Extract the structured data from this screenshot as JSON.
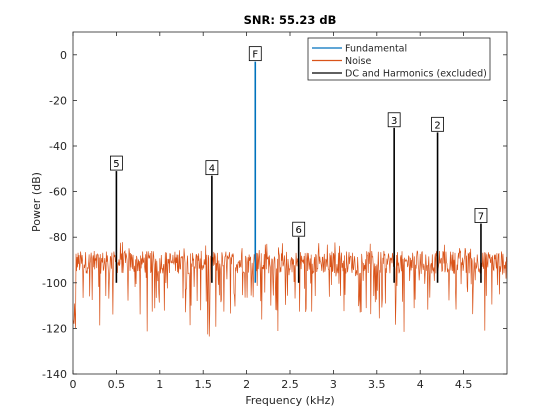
{
  "chart_data": {
    "type": "line",
    "title": "SNR:  55.23 dB",
    "xlabel": "Frequency (kHz)",
    "ylabel": "Power (dB)",
    "xlim": [
      0,
      5
    ],
    "ylim": [
      -140,
      10
    ],
    "xticks": [
      0,
      0.5,
      1,
      1.5,
      2,
      2.5,
      3,
      3.5,
      4,
      4.5
    ],
    "xtick_labels": [
      "0",
      "0.5",
      "1",
      "1.5",
      "2",
      "2.5",
      "3",
      "3.5",
      "4",
      "4.5"
    ],
    "yticks": [
      -140,
      -120,
      -100,
      -80,
      -60,
      -40,
      -20,
      0
    ],
    "ytick_labels": [
      "-140",
      "-120",
      "-100",
      "-80",
      "-60",
      "-40",
      "-20",
      "0"
    ],
    "grid": false,
    "legend_position": "top-right",
    "series": [
      {
        "name": "Fundamental",
        "color": "#0072bd",
        "peaks": [
          {
            "x": 2.1,
            "y": -3,
            "label": "F"
          }
        ]
      },
      {
        "name": "Noise",
        "color": "#d95319",
        "baseline": -91,
        "spread": 5,
        "min": -124,
        "max": -81
      },
      {
        "name": "DC and Harmonics (excluded)",
        "color": "#000000",
        "peaks": [
          {
            "x": 3.7,
            "y": -32,
            "label": "3"
          },
          {
            "x": 4.2,
            "y": -34,
            "label": "2"
          },
          {
            "x": 1.6,
            "y": -53,
            "label": "4"
          },
          {
            "x": 0.5,
            "y": -51,
            "label": "5"
          },
          {
            "x": 2.6,
            "y": -80,
            "label": "6"
          },
          {
            "x": 4.7,
            "y": -74,
            "label": "7"
          }
        ]
      }
    ]
  }
}
